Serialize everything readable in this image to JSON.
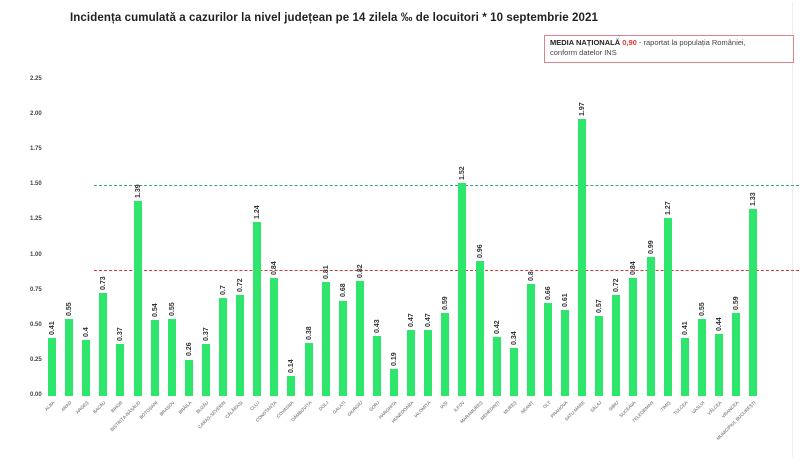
{
  "chart_data": {
    "type": "bar",
    "title": "Incidența cumulată a cazurilor la nivel județean pe 14 zilela ‰ de locuitori * 10 septembrie 2021",
    "xlabel": "",
    "ylabel": "",
    "ylim": [
      0,
      2.25
    ],
    "yticks": [
      "0.00",
      "0.25",
      "0.50",
      "0.75",
      "1.00",
      "1.25",
      "1.50",
      "1.75",
      "2.00",
      "2.25"
    ],
    "grid": false,
    "categories": [
      "ALBA",
      "ARAD",
      "ARGEȘ",
      "BACĂU",
      "BIHOR",
      "BISTRIȚA-NĂSĂUD",
      "BOTOȘANI",
      "BRAȘOV",
      "BRĂILA",
      "BUZĂU",
      "CARAȘ-SEVERIN",
      "CĂLĂRAȘI",
      "CLUJ",
      "CONSTANȚA",
      "COVASNA",
      "DÂMBOVIȚA",
      "DOLJ",
      "GALAȚI",
      "GIURGIU",
      "GORJ",
      "HARGHITA",
      "HUNEDOARA",
      "IALOMIȚA",
      "IAȘI",
      "ILFOV",
      "MARAMUREȘ",
      "MEHEDINȚI",
      "MUREȘ",
      "NEAMȚ",
      "OLT",
      "PRAHOVA",
      "SATU MARE",
      "SĂLAJ",
      "SIBIU",
      "SUCEAVA",
      "TELEORMAN",
      "TIMIȘ",
      "TULCEA",
      "VASLUI",
      "VÂLCEA",
      "VRANCEA",
      "MUNICIPIUL BUCUREȘTI"
    ],
    "values": [
      0.41,
      0.55,
      0.4,
      0.73,
      0.37,
      1.39,
      0.54,
      0.55,
      0.26,
      0.37,
      0.7,
      0.72,
      1.24,
      0.84,
      0.14,
      0.38,
      0.81,
      0.68,
      0.82,
      0.43,
      0.19,
      0.47,
      0.47,
      0.59,
      1.52,
      0.96,
      0.42,
      0.34,
      0.8,
      0.66,
      0.61,
      1.97,
      0.57,
      0.72,
      0.84,
      0.99,
      1.27,
      0.41,
      0.55,
      0.44,
      0.59,
      1.33
    ],
    "value_labels": [
      "0.41",
      "0.55",
      "0.4",
      "0.73",
      "0.37",
      "1.39",
      "0.54",
      "0.55",
      "0.26",
      "0.37",
      "0.7",
      "0.72",
      "1.24",
      "0.84",
      "0.14",
      "0.38",
      "0.81",
      "0.68",
      "0.82",
      "0.43",
      "0.19",
      "0.47",
      "0.47",
      "0.59",
      "1.52",
      "0.96",
      "0.42",
      "0.34",
      "0.8",
      "0.66",
      "0.61",
      "1.97",
      "0.57",
      "0.72",
      "0.84",
      "0.99",
      "1.27",
      "0.41",
      "0.55",
      "0.44",
      "0.59",
      "1.33"
    ],
    "reference_lines": [
      {
        "name": "Media națională",
        "value": 0.9,
        "color": "#d9363e",
        "style": "dashed"
      },
      {
        "name": "Prag 1.5",
        "value": 1.5,
        "color": "#3aa877",
        "style": "dashed"
      }
    ],
    "bar_color": "#2ee66b",
    "legend": {
      "position": "top-right",
      "label_bold": "MEDIA NAȚIONALĂ",
      "value": "0,90",
      "text": " - raportat la populația României,",
      "text2": "conform datelor INS"
    }
  }
}
